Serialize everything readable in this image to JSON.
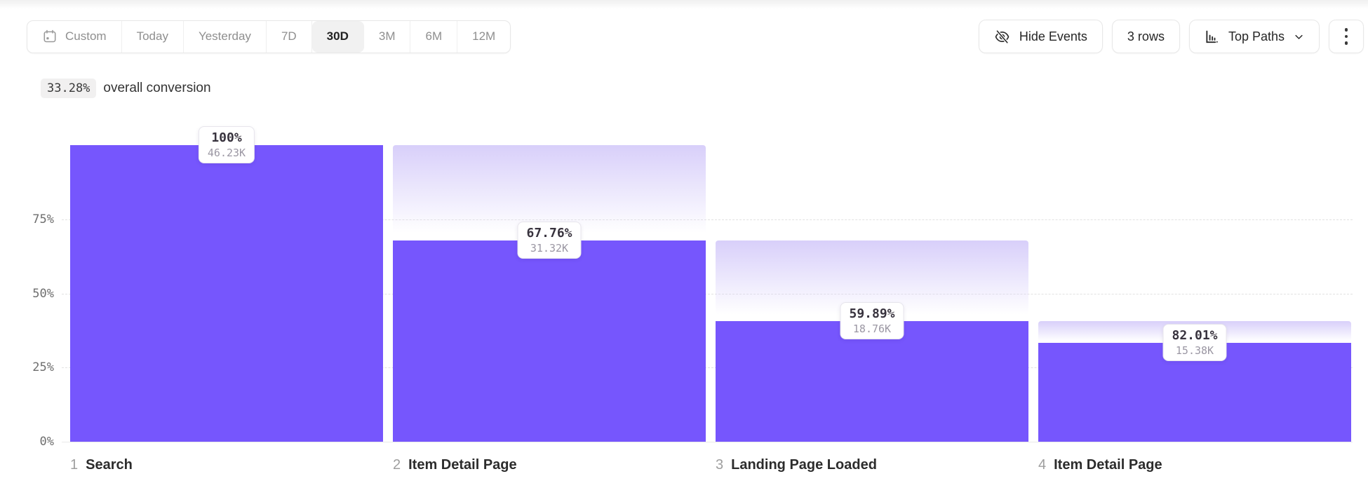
{
  "toolbar": {
    "date_ranges": [
      {
        "label": "Custom",
        "selected": false,
        "has_calendar_icon": true
      },
      {
        "label": "Today",
        "selected": false
      },
      {
        "label": "Yesterday",
        "selected": false
      },
      {
        "label": "7D",
        "selected": false
      },
      {
        "label": "30D",
        "selected": true
      },
      {
        "label": "3M",
        "selected": false
      },
      {
        "label": "6M",
        "selected": false
      },
      {
        "label": "12M",
        "selected": false
      }
    ],
    "hide_events": {
      "label": "Hide Events",
      "icon": "eye-off-icon"
    },
    "rows": {
      "label": "3 rows"
    },
    "top_paths": {
      "label": "Top Paths",
      "icon": "bar-chart-icon",
      "chevron": "chevron-down-icon"
    },
    "more": {
      "icon": "kebab-menu-icon"
    }
  },
  "summary": {
    "value": "33.28%",
    "label": "overall conversion"
  },
  "chart_data": {
    "type": "bar",
    "subtype": "funnel",
    "title": "",
    "xlabel": "",
    "ylabel": "",
    "ylim": [
      0,
      100
    ],
    "grid": "horizontal dashed at 25%, 50%, 75%; solid baseline at 0%",
    "legend": "none",
    "y_ticks": [
      {
        "label": "0%",
        "pct": 0
      },
      {
        "label": "25%",
        "pct": 25
      },
      {
        "label": "50%",
        "pct": 50
      },
      {
        "label": "75%",
        "pct": 75
      }
    ],
    "steps": [
      {
        "index": "1",
        "name": "Search",
        "step_conversion": "100%",
        "count": "46.23K",
        "pct_of_total": 100
      },
      {
        "index": "2",
        "name": "Item Detail Page",
        "step_conversion": "67.76%",
        "count": "31.32K",
        "pct_of_total": 67.75
      },
      {
        "index": "3",
        "name": "Landing Page Loaded",
        "step_conversion": "59.89%",
        "count": "18.76K",
        "pct_of_total": 40.58
      },
      {
        "index": "4",
        "name": "Item Detail Page",
        "step_conversion": "82.01%",
        "count": "15.38K",
        "pct_of_total": 33.27
      }
    ],
    "colors": {
      "bar": "#7656fd",
      "dropoff_gradient_top": "#d8cffa",
      "grid": "#e2e2e2"
    }
  }
}
